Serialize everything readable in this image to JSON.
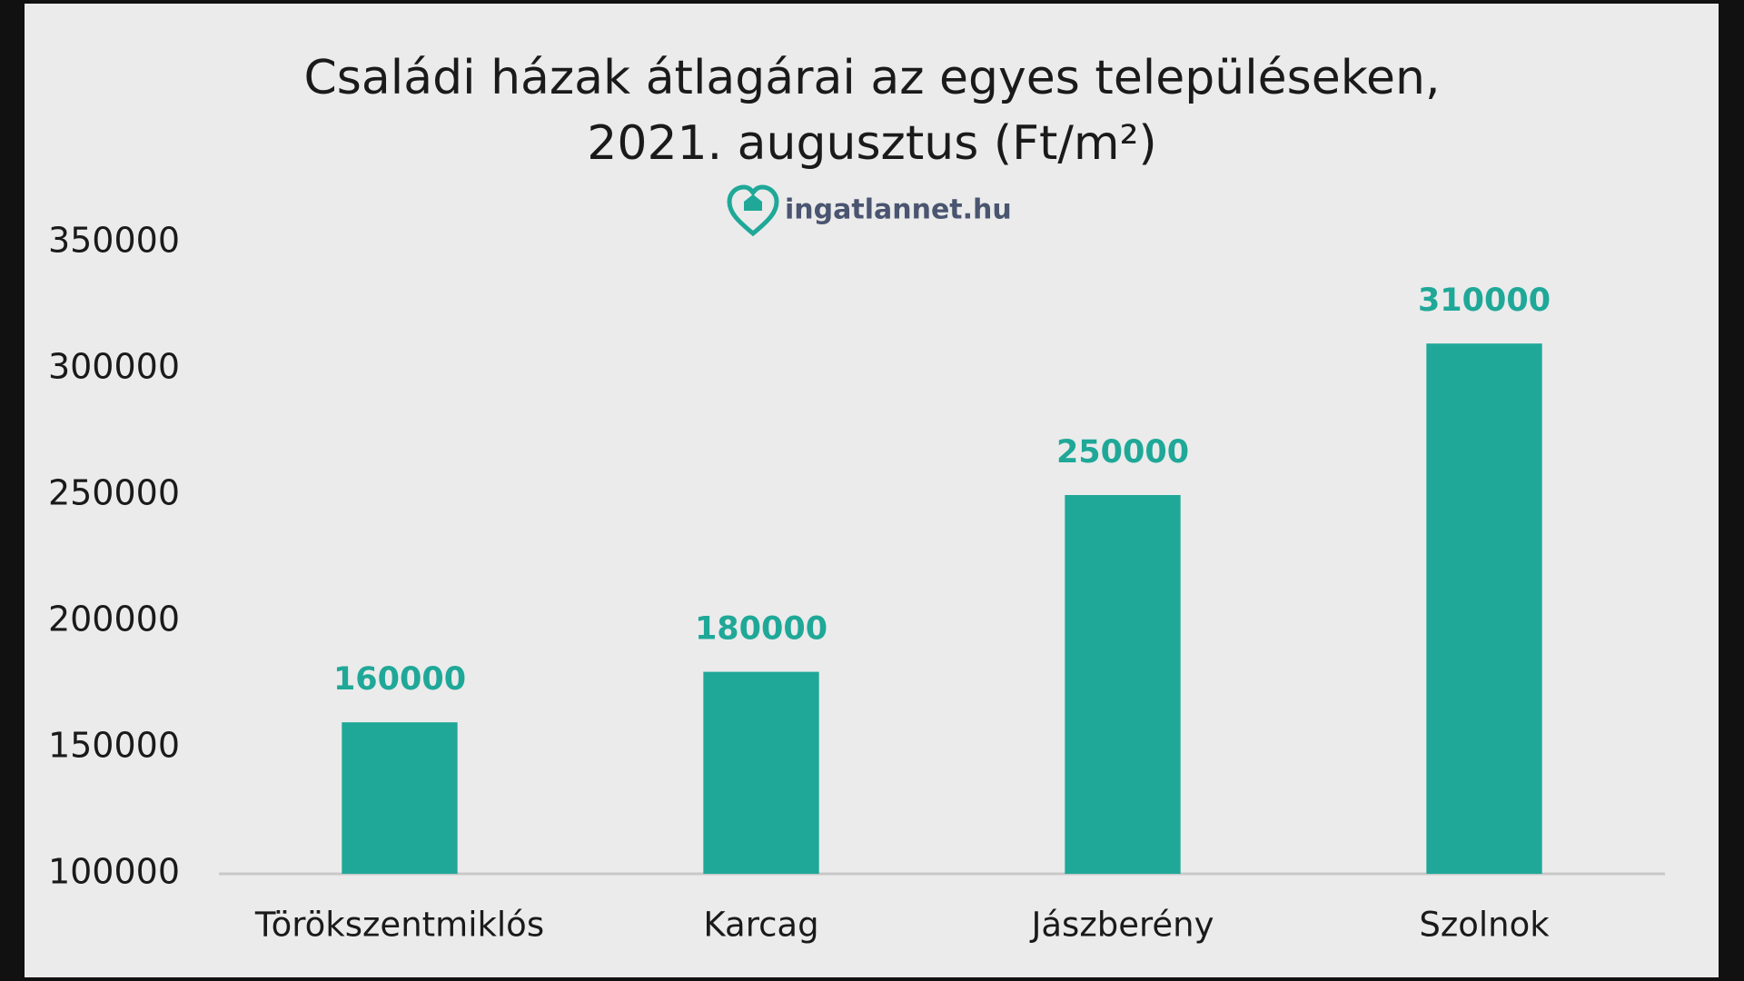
{
  "chart_data": {
    "type": "bar",
    "title": [
      "Családi házak átlagárai az egyes településeken,",
      "2021. augusztus (Ft/m²)"
    ],
    "logo": "ingatlannet.hu",
    "categories": [
      "Törökszentmiklós",
      "Karcag",
      "Jászberény",
      "Szolnok"
    ],
    "values": [
      160000,
      180000,
      250000,
      310000
    ],
    "color": "#1fa898",
    "ylim": [
      100000,
      350000
    ],
    "yticks": [
      100000,
      150000,
      200000,
      250000,
      300000,
      350000
    ],
    "grid": false
  }
}
